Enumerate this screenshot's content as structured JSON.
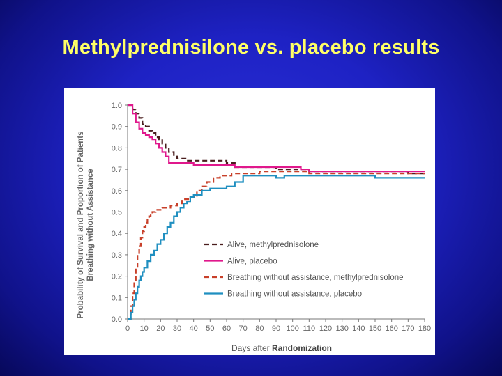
{
  "slide": {
    "title": "Methylprednisilone vs. placebo results"
  },
  "chart_data": {
    "type": "line",
    "title": "",
    "xlabel_regular": "Days after ",
    "xlabel_bold": "Randomization",
    "ylabel_line1": "Probability of Survival and Proportion of Patients",
    "ylabel_line2": "Breathing without Assistance",
    "xlim": [
      0,
      180
    ],
    "ylim": [
      0.0,
      1.0
    ],
    "xticks": [
      0,
      10,
      20,
      30,
      40,
      50,
      60,
      70,
      80,
      90,
      100,
      110,
      120,
      130,
      140,
      150,
      160,
      170,
      180
    ],
    "yticks": [
      "0.0",
      "0.1",
      "0.2",
      "0.3",
      "0.4",
      "0.5",
      "0.6",
      "0.7",
      "0.8",
      "0.9",
      "1.0"
    ],
    "legend_position": "lower-right",
    "series": [
      {
        "name": "Alive, methylprednisolone",
        "color": "#4a1e1e",
        "dash": "dashed",
        "x": [
          0,
          3,
          5,
          7,
          9,
          11,
          13,
          15,
          17,
          19,
          21,
          23,
          25,
          28,
          30,
          33,
          36,
          40,
          45,
          50,
          55,
          60,
          65,
          70,
          80,
          90,
          95,
          100,
          110,
          120,
          130,
          140,
          150,
          160,
          170,
          180
        ],
        "y": [
          1.0,
          0.98,
          0.96,
          0.94,
          0.91,
          0.9,
          0.88,
          0.87,
          0.85,
          0.84,
          0.82,
          0.8,
          0.78,
          0.76,
          0.75,
          0.75,
          0.74,
          0.74,
          0.74,
          0.74,
          0.74,
          0.73,
          0.71,
          0.71,
          0.71,
          0.7,
          0.7,
          0.7,
          0.69,
          0.69,
          0.69,
          0.69,
          0.69,
          0.69,
          0.68,
          0.68
        ]
      },
      {
        "name": "Alive, placebo",
        "color": "#e0188c",
        "dash": "solid",
        "x": [
          0,
          3,
          5,
          7,
          9,
          11,
          13,
          15,
          17,
          19,
          21,
          23,
          25,
          28,
          30,
          35,
          40,
          45,
          50,
          55,
          60,
          65,
          70,
          80,
          90,
          95,
          100,
          105,
          110,
          120,
          130,
          140,
          150,
          160,
          170,
          180
        ],
        "y": [
          1.0,
          0.96,
          0.92,
          0.89,
          0.87,
          0.86,
          0.85,
          0.84,
          0.82,
          0.8,
          0.78,
          0.76,
          0.73,
          0.73,
          0.73,
          0.73,
          0.72,
          0.72,
          0.72,
          0.72,
          0.72,
          0.71,
          0.71,
          0.71,
          0.71,
          0.71,
          0.71,
          0.7,
          0.69,
          0.69,
          0.69,
          0.69,
          0.69,
          0.69,
          0.69,
          0.69
        ]
      },
      {
        "name": "Breathing without assistance, methylprednisolone",
        "color": "#c8402a",
        "dash": "dashed",
        "x": [
          0,
          2,
          3,
          4,
          5,
          6,
          7,
          8,
          9,
          10,
          11,
          12,
          13,
          14,
          15,
          17,
          19,
          21,
          23,
          26,
          30,
          33,
          38,
          42,
          45,
          48,
          52,
          56,
          60,
          63,
          66,
          70,
          75,
          80,
          90,
          100,
          110,
          120,
          130,
          140,
          150,
          160,
          170,
          180
        ],
        "y": [
          0.0,
          0.06,
          0.12,
          0.18,
          0.24,
          0.3,
          0.34,
          0.38,
          0.41,
          0.43,
          0.45,
          0.47,
          0.48,
          0.49,
          0.5,
          0.51,
          0.51,
          0.52,
          0.52,
          0.53,
          0.54,
          0.56,
          0.57,
          0.6,
          0.62,
          0.64,
          0.66,
          0.67,
          0.67,
          0.68,
          0.68,
          0.68,
          0.68,
          0.69,
          0.69,
          0.69,
          0.68,
          0.68,
          0.68,
          0.68,
          0.68,
          0.68,
          0.68,
          0.68
        ]
      },
      {
        "name": "Breathing without assistance, placebo",
        "color": "#1f8fc0",
        "dash": "solid",
        "x": [
          0,
          2,
          3,
          4,
          5,
          6,
          7,
          8,
          9,
          10,
          12,
          14,
          16,
          18,
          20,
          22,
          24,
          26,
          28,
          30,
          32,
          34,
          36,
          38,
          40,
          45,
          50,
          55,
          60,
          65,
          70,
          75,
          80,
          85,
          90,
          95,
          100,
          110,
          120,
          130,
          140,
          150,
          160,
          170,
          180
        ],
        "y": [
          0.0,
          0.03,
          0.06,
          0.09,
          0.12,
          0.15,
          0.18,
          0.2,
          0.22,
          0.24,
          0.27,
          0.3,
          0.32,
          0.35,
          0.37,
          0.4,
          0.43,
          0.45,
          0.48,
          0.5,
          0.52,
          0.54,
          0.55,
          0.57,
          0.58,
          0.6,
          0.61,
          0.61,
          0.62,
          0.64,
          0.67,
          0.67,
          0.67,
          0.67,
          0.66,
          0.67,
          0.67,
          0.67,
          0.67,
          0.67,
          0.67,
          0.66,
          0.66,
          0.66,
          0.66
        ]
      }
    ]
  }
}
